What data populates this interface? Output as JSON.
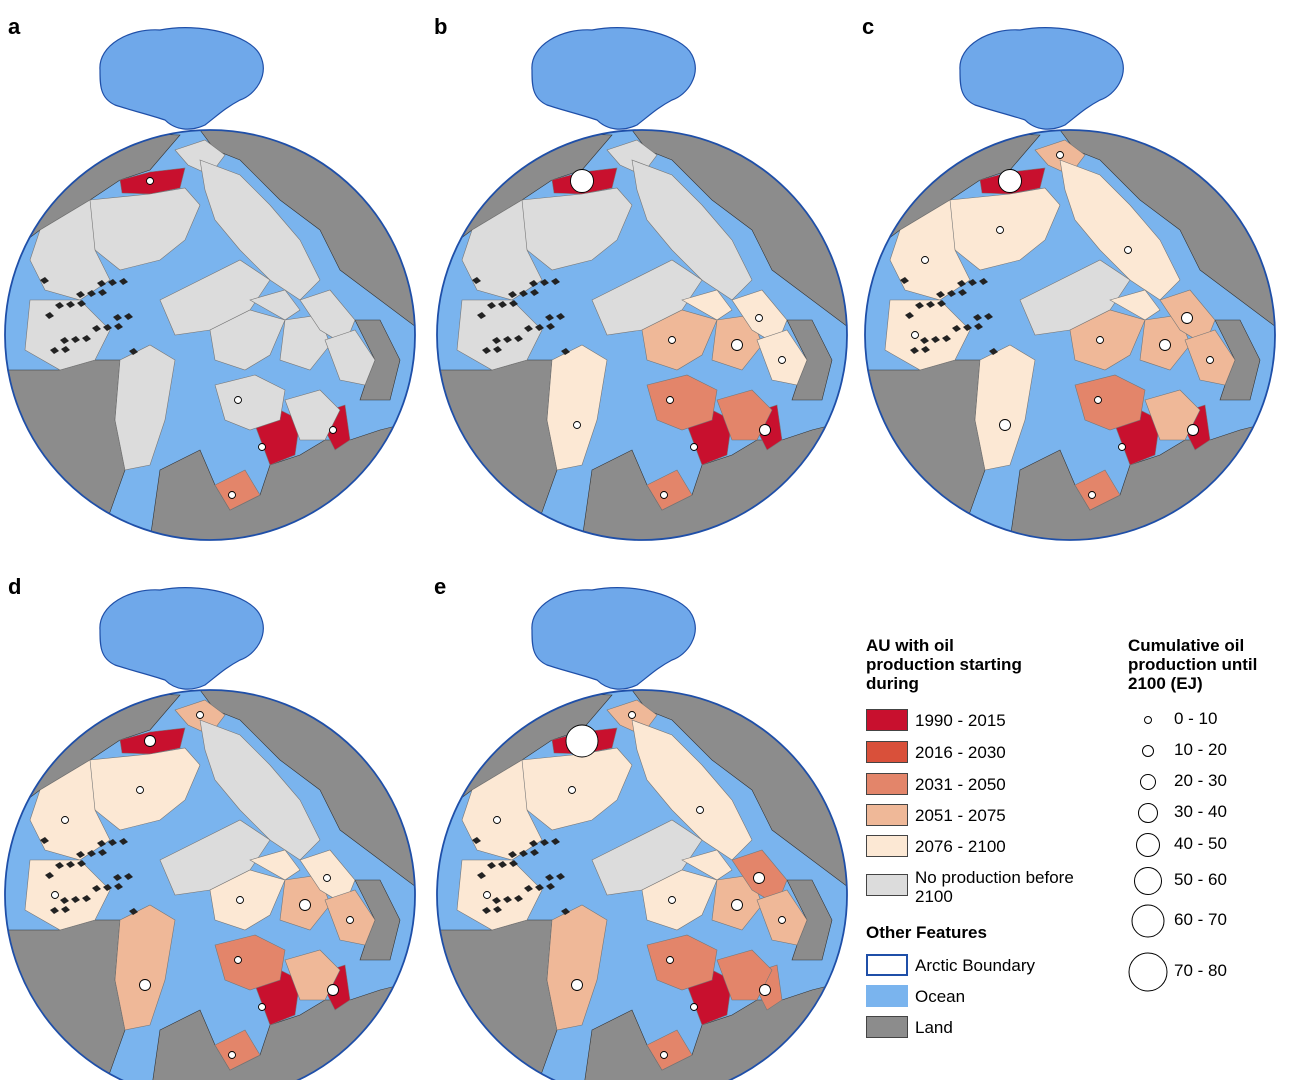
{
  "panels": [
    {
      "letter": "a"
    },
    {
      "letter": "b"
    },
    {
      "letter": "c"
    },
    {
      "letter": "d"
    },
    {
      "letter": "e"
    }
  ],
  "legend_au": {
    "title": "AU with oil production starting during",
    "title_lines": [
      "AU with oil",
      "production starting",
      "during"
    ],
    "items": [
      {
        "label": "1990 - 2015",
        "color": "#c8102e"
      },
      {
        "label": "2016 - 2030",
        "color": "#d9503a"
      },
      {
        "label": "2031 - 2050",
        "color": "#e3856a"
      },
      {
        "label": "2051 - 2075",
        "color": "#efb898"
      },
      {
        "label": "2076 - 2100",
        "color": "#fce8d4"
      },
      {
        "label": "No production before 2100",
        "label_lines": [
          "No production before",
          "2100"
        ],
        "color": "#dcdcdc"
      }
    ]
  },
  "legend_features": {
    "title": "Other Features",
    "items": [
      {
        "label": "Arctic Boundary",
        "color": "#ffffff",
        "border": "#1f4fa8"
      },
      {
        "label": "Ocean",
        "color": "#7ab4ee",
        "border": "#7ab4ee"
      },
      {
        "label": "Land",
        "color": "#8c8c8c",
        "border": "#444444"
      }
    ]
  },
  "legend_size": {
    "title": "Cumulative oil production until 2100 (EJ)",
    "title_lines": [
      "Cumulative oil",
      "production until",
      "2100 (EJ)"
    ],
    "items": [
      {
        "label": "0 - 10"
      },
      {
        "label": "10 - 20"
      },
      {
        "label": "20 - 30"
      },
      {
        "label": "30 - 40"
      },
      {
        "label": "40 - 50"
      },
      {
        "label": "50 - 60"
      },
      {
        "label": "60 - 70"
      },
      {
        "label": "70 - 80"
      }
    ]
  },
  "colors": {
    "ocean": "#7ab4ee",
    "land": "#8c8c8c",
    "boundary": "#1f4fa8",
    "greenland_top": "#6fa8ea",
    "p1990": "#c8102e",
    "p2016": "#d9503a",
    "p2031": "#e3856a",
    "p2051": "#efb898",
    "p2076": "#fce8d4",
    "none": "#dcdcdc"
  },
  "region_colors_by_panel": {
    "a": {
      "north_basin": "p1990",
      "shelf_ne": "none",
      "central_west": "none",
      "central_east": "none",
      "ridge": "none",
      "canada_w": "none",
      "canada_e": "none",
      "greenland_e": "none",
      "norway_sea": "none",
      "barents_w": "none",
      "barents_e": "none",
      "kara": "none",
      "west_siberia": "p1990",
      "pechora": "p1990",
      "small_island": "none",
      "yamal": "none",
      "arctic_coast": "none",
      "southeast": "p2031"
    },
    "b": {
      "north_basin": "p1990",
      "shelf_ne": "none",
      "central_west": "none",
      "central_east": "none",
      "ridge": "none",
      "canada_w": "none",
      "canada_e": "none",
      "greenland_e": "p2076",
      "norway_sea": "p2051",
      "barents_w": "p2076",
      "barents_e": "p2051",
      "kara": "p2076",
      "west_siberia": "p1990",
      "pechora": "p1990",
      "small_island": "p2076",
      "yamal": "p2031",
      "arctic_coast": "p2031",
      "southeast": "p2031"
    },
    "c": {
      "north_basin": "p1990",
      "shelf_ne": "p2051",
      "central_west": "p2076",
      "central_east": "p2076",
      "ridge": "none",
      "canada_w": "p2076",
      "canada_e": "p2076",
      "greenland_e": "p2076",
      "norway_sea": "p2051",
      "barents_w": "p2076",
      "barents_e": "p2051",
      "kara": "p2051",
      "west_siberia": "p1990",
      "pechora": "p1990",
      "small_island": "p2051",
      "yamal": "p2031",
      "arctic_coast": "p2051",
      "southeast": "p2031"
    },
    "d": {
      "north_basin": "p1990",
      "shelf_ne": "p2051",
      "central_west": "p2076",
      "central_east": "none",
      "ridge": "none",
      "canada_w": "p2076",
      "canada_e": "p2076",
      "greenland_e": "p2051",
      "norway_sea": "p2076",
      "barents_w": "p2076",
      "barents_e": "p2051",
      "kara": "p2076",
      "west_siberia": "p1990",
      "pechora": "p1990",
      "small_island": "p2051",
      "yamal": "p2031",
      "arctic_coast": "p2051",
      "southeast": "p2031"
    },
    "e": {
      "north_basin": "p1990",
      "shelf_ne": "p2051",
      "central_west": "p2076",
      "central_east": "p2076",
      "ridge": "none",
      "canada_w": "p2076",
      "canada_e": "p2076",
      "greenland_e": "p2051",
      "norway_sea": "p2076",
      "barents_w": "p2076",
      "barents_e": "p2051",
      "kara": "p2031",
      "west_siberia": "p1990",
      "pechora": "p2031",
      "small_island": "p2051",
      "yamal": "p2031",
      "arctic_coast": "p2031",
      "southeast": "p2031"
    }
  },
  "circles_by_panel": {
    "a": [
      {
        "at": "alaska",
        "cls": 1
      },
      {
        "at": "pechora",
        "cls": 1
      },
      {
        "at": "west_siberia",
        "cls": 1
      },
      {
        "at": "yamal",
        "cls": 1
      },
      {
        "at": "southeast",
        "cls": 1
      }
    ],
    "b": [
      {
        "at": "alaska",
        "cls": 5
      },
      {
        "at": "pechora",
        "cls": 2
      },
      {
        "at": "west_siberia",
        "cls": 1
      },
      {
        "at": "yamal",
        "cls": 1
      },
      {
        "at": "barents_e",
        "cls": 2
      },
      {
        "at": "kara",
        "cls": 1
      },
      {
        "at": "small_island",
        "cls": 1
      },
      {
        "at": "greenland_e",
        "cls": 1
      },
      {
        "at": "norway_sea",
        "cls": 1
      },
      {
        "at": "southeast",
        "cls": 1
      }
    ],
    "c": [
      {
        "at": "alaska",
        "cls": 5
      },
      {
        "at": "pechora",
        "cls": 2
      },
      {
        "at": "west_siberia",
        "cls": 1
      },
      {
        "at": "yamal",
        "cls": 1
      },
      {
        "at": "barents_e",
        "cls": 2
      },
      {
        "at": "kara",
        "cls": 2
      },
      {
        "at": "small_island",
        "cls": 1
      },
      {
        "at": "greenland_e",
        "cls": 2
      },
      {
        "at": "norway_sea",
        "cls": 1
      },
      {
        "at": "canada_w",
        "cls": 1
      },
      {
        "at": "canada_e",
        "cls": 1
      },
      {
        "at": "shelf_ne",
        "cls": 1
      },
      {
        "at": "central_west",
        "cls": 1
      },
      {
        "at": "central_east",
        "cls": 1
      },
      {
        "at": "southeast",
        "cls": 1
      }
    ],
    "d": [
      {
        "at": "alaska",
        "cls": 2
      },
      {
        "at": "pechora",
        "cls": 2
      },
      {
        "at": "west_siberia",
        "cls": 1
      },
      {
        "at": "yamal",
        "cls": 1
      },
      {
        "at": "barents_e",
        "cls": 2
      },
      {
        "at": "kara",
        "cls": 1
      },
      {
        "at": "small_island",
        "cls": 1
      },
      {
        "at": "greenland_e",
        "cls": 2
      },
      {
        "at": "norway_sea",
        "cls": 1
      },
      {
        "at": "canada_w",
        "cls": 1
      },
      {
        "at": "canada_e",
        "cls": 1
      },
      {
        "at": "shelf_ne",
        "cls": 1
      },
      {
        "at": "central_west",
        "cls": 1
      },
      {
        "at": "southeast",
        "cls": 1
      }
    ],
    "e": [
      {
        "at": "alaska",
        "cls": 7
      },
      {
        "at": "pechora",
        "cls": 2
      },
      {
        "at": "west_siberia",
        "cls": 1
      },
      {
        "at": "yamal",
        "cls": 1
      },
      {
        "at": "barents_e",
        "cls": 2
      },
      {
        "at": "kara",
        "cls": 2
      },
      {
        "at": "small_island",
        "cls": 1
      },
      {
        "at": "greenland_e",
        "cls": 2
      },
      {
        "at": "norway_sea",
        "cls": 1
      },
      {
        "at": "canada_w",
        "cls": 1
      },
      {
        "at": "canada_e",
        "cls": 1
      },
      {
        "at": "shelf_ne",
        "cls": 1
      },
      {
        "at": "central_west",
        "cls": 1
      },
      {
        "at": "central_east",
        "cls": 1
      },
      {
        "at": "southeast",
        "cls": 1
      }
    ]
  }
}
